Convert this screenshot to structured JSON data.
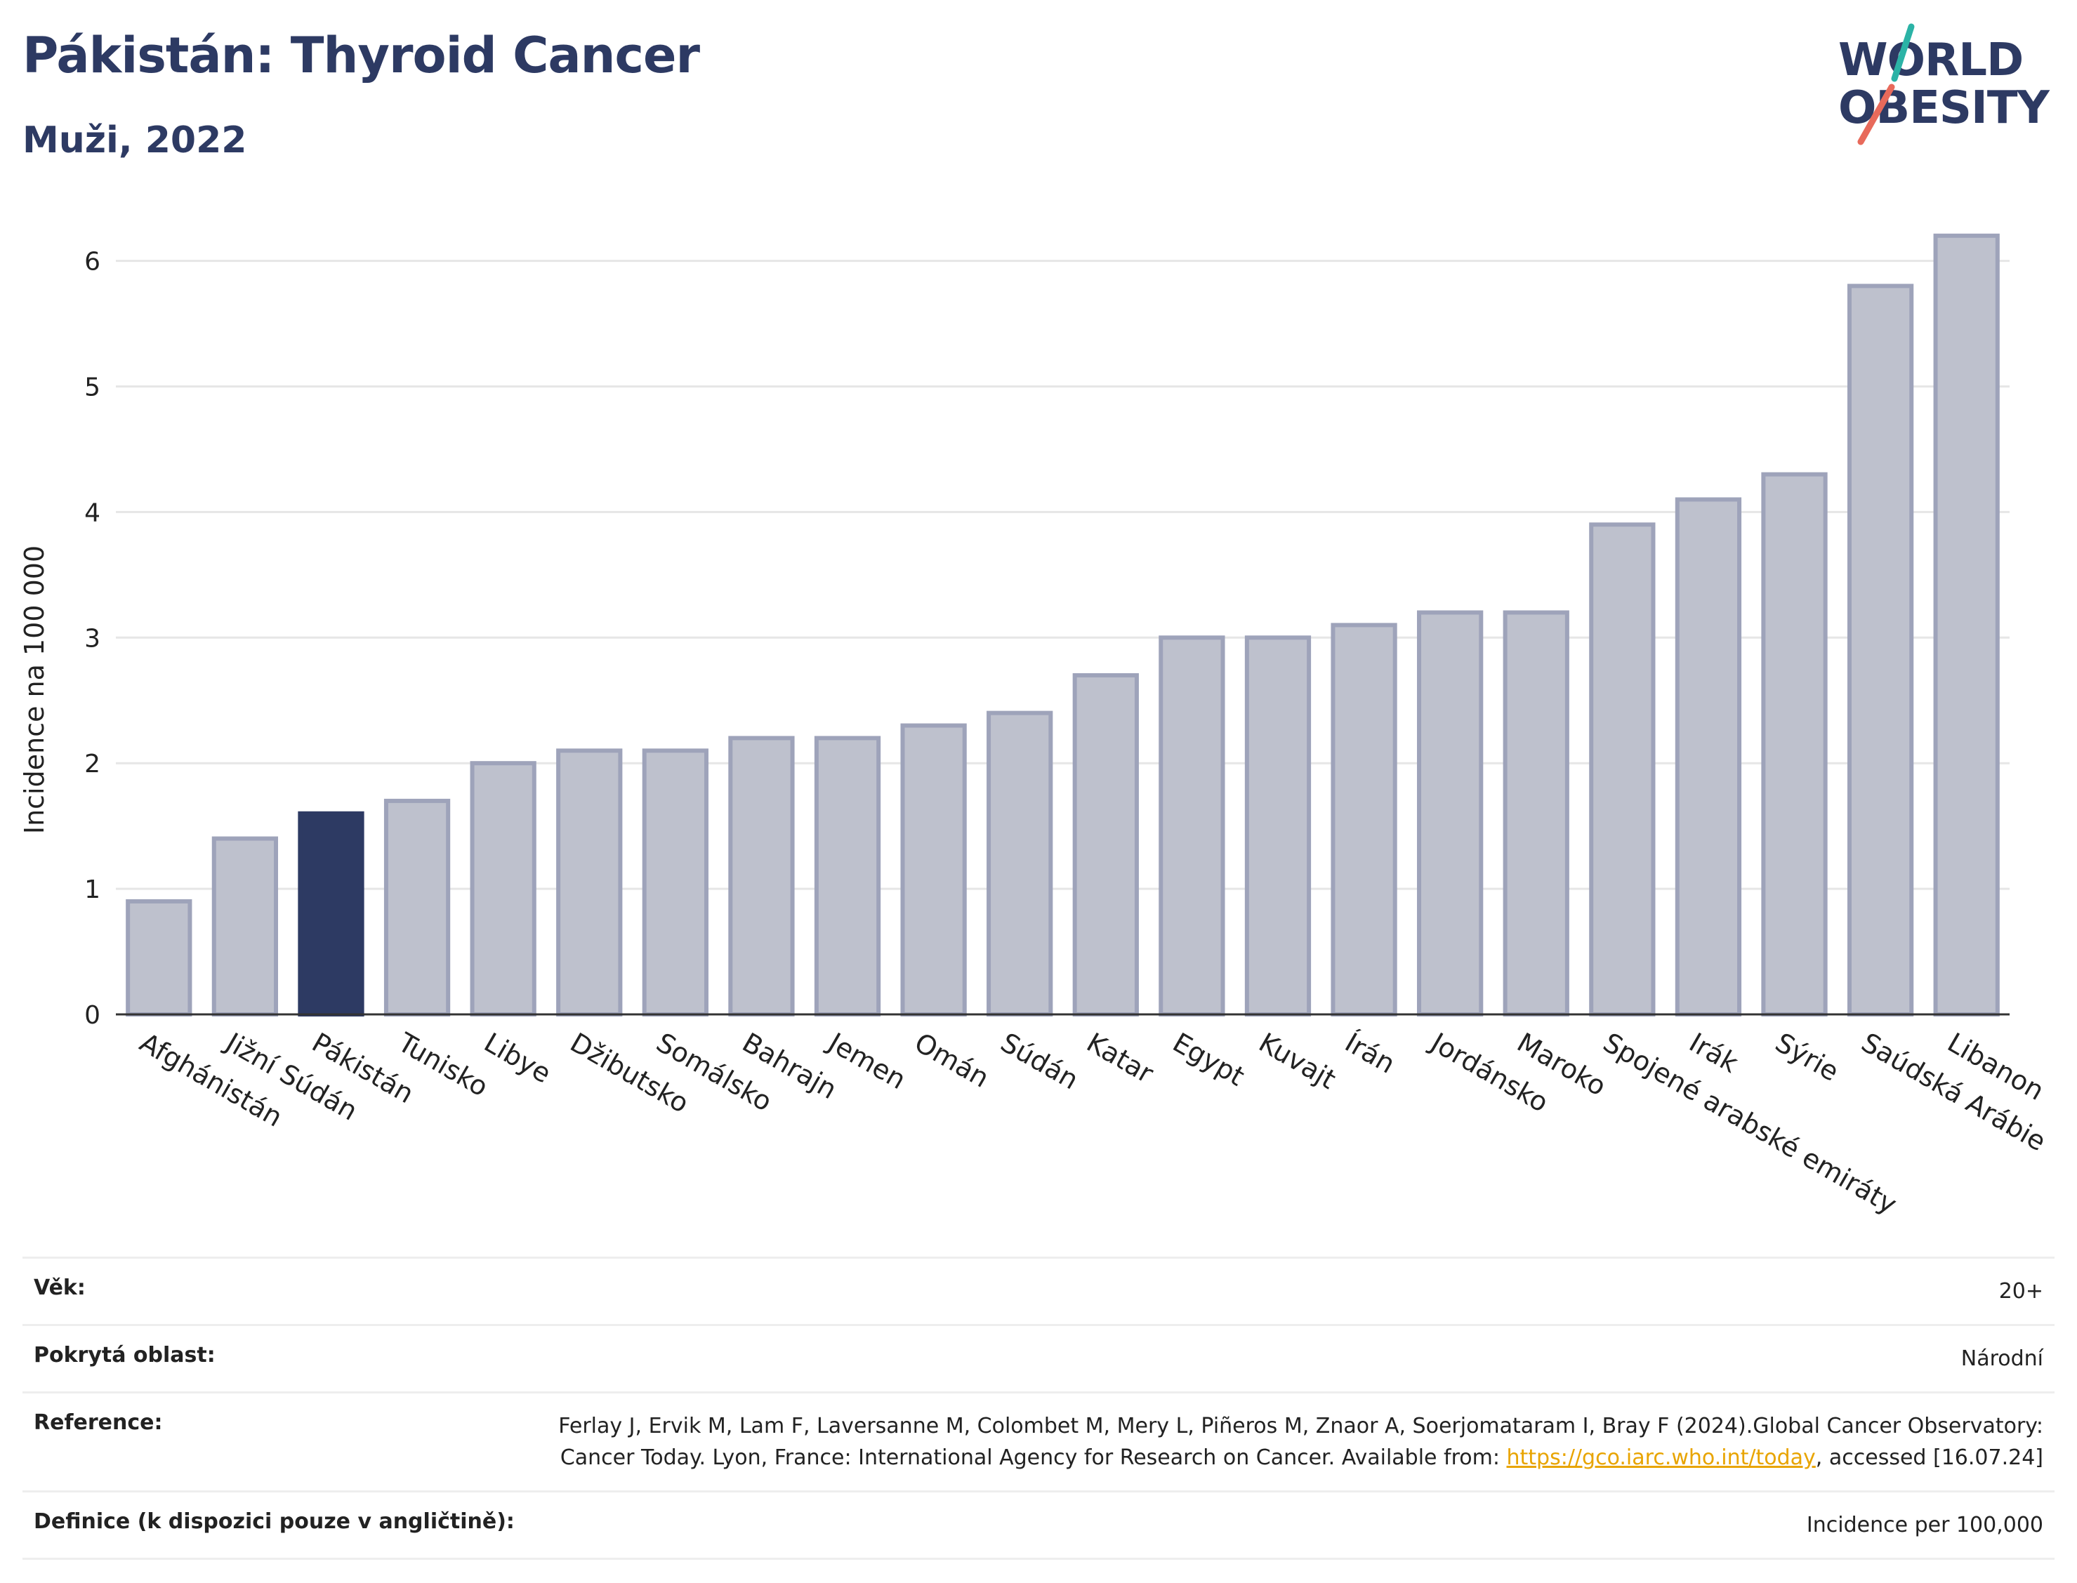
{
  "header": {
    "title": "Pákistán: Thyroid Cancer",
    "subtitle": "Muži, 2022"
  },
  "logo": {
    "line1": "WORLD",
    "line2": "OBESITY",
    "colors": {
      "text": "#2d3a63",
      "slash_top": "#2bb3a6",
      "slash_bottom": "#e86a5b"
    }
  },
  "chart_data": {
    "type": "bar",
    "title": "Pákistán: Thyroid Cancer",
    "subtitle": "Muži, 2022",
    "xlabel": "",
    "ylabel": "Incidence na 100 000",
    "ylim": [
      0,
      6.4
    ],
    "yticks": [
      0,
      1,
      2,
      3,
      4,
      5,
      6
    ],
    "grid": true,
    "legend": "none",
    "highlight": "Pákistán",
    "colors": {
      "bar": "#bec1cd",
      "bar_edge": "#9ea3ba",
      "highlight": "#2d3a63",
      "grid": "#e6e6e6",
      "axis": "#333333"
    },
    "categories": [
      "Afghánistán",
      "Jižní Súdán",
      "Pákistán",
      "Tunisko",
      "Libye",
      "Džibutsko",
      "Somálsko",
      "Bahrajn",
      "Jemen",
      "Omán",
      "Súdán",
      "Katar",
      "Egypt",
      "Kuvajt",
      "Írán",
      "Jordánsko",
      "Maroko",
      "Spojené arabské emiráty",
      "Irák",
      "Sýrie",
      "Saúdská Arábie",
      "Libanon"
    ],
    "values": [
      0.9,
      1.4,
      1.6,
      1.7,
      2.0,
      2.1,
      2.1,
      2.2,
      2.2,
      2.3,
      2.4,
      2.7,
      3.0,
      3.0,
      3.1,
      3.2,
      3.2,
      3.9,
      4.1,
      4.3,
      5.8,
      6.2
    ]
  },
  "meta": {
    "age_label": "Věk:",
    "age_value": "20+",
    "coverage_label": "Pokrytá oblast:",
    "coverage_value": "Národní",
    "reference_label": "Reference:",
    "reference_text_1": "Ferlay J, Ervik M, Lam F, Laversanne M, Colombet M, Mery L, Piñeros M, Znaor A, Soerjomataram I, Bray F (2024).Global Cancer Observatory: Cancer Today. Lyon, France: International Agency for Research on Cancer. Available from: ",
    "reference_link": "https://gco.iarc.who.int/today",
    "reference_text_2": ", accessed [16.07.24]",
    "definition_label": "Definice (k dispozici pouze v angličtině):",
    "definition_value": "Incidence per 100,000"
  }
}
